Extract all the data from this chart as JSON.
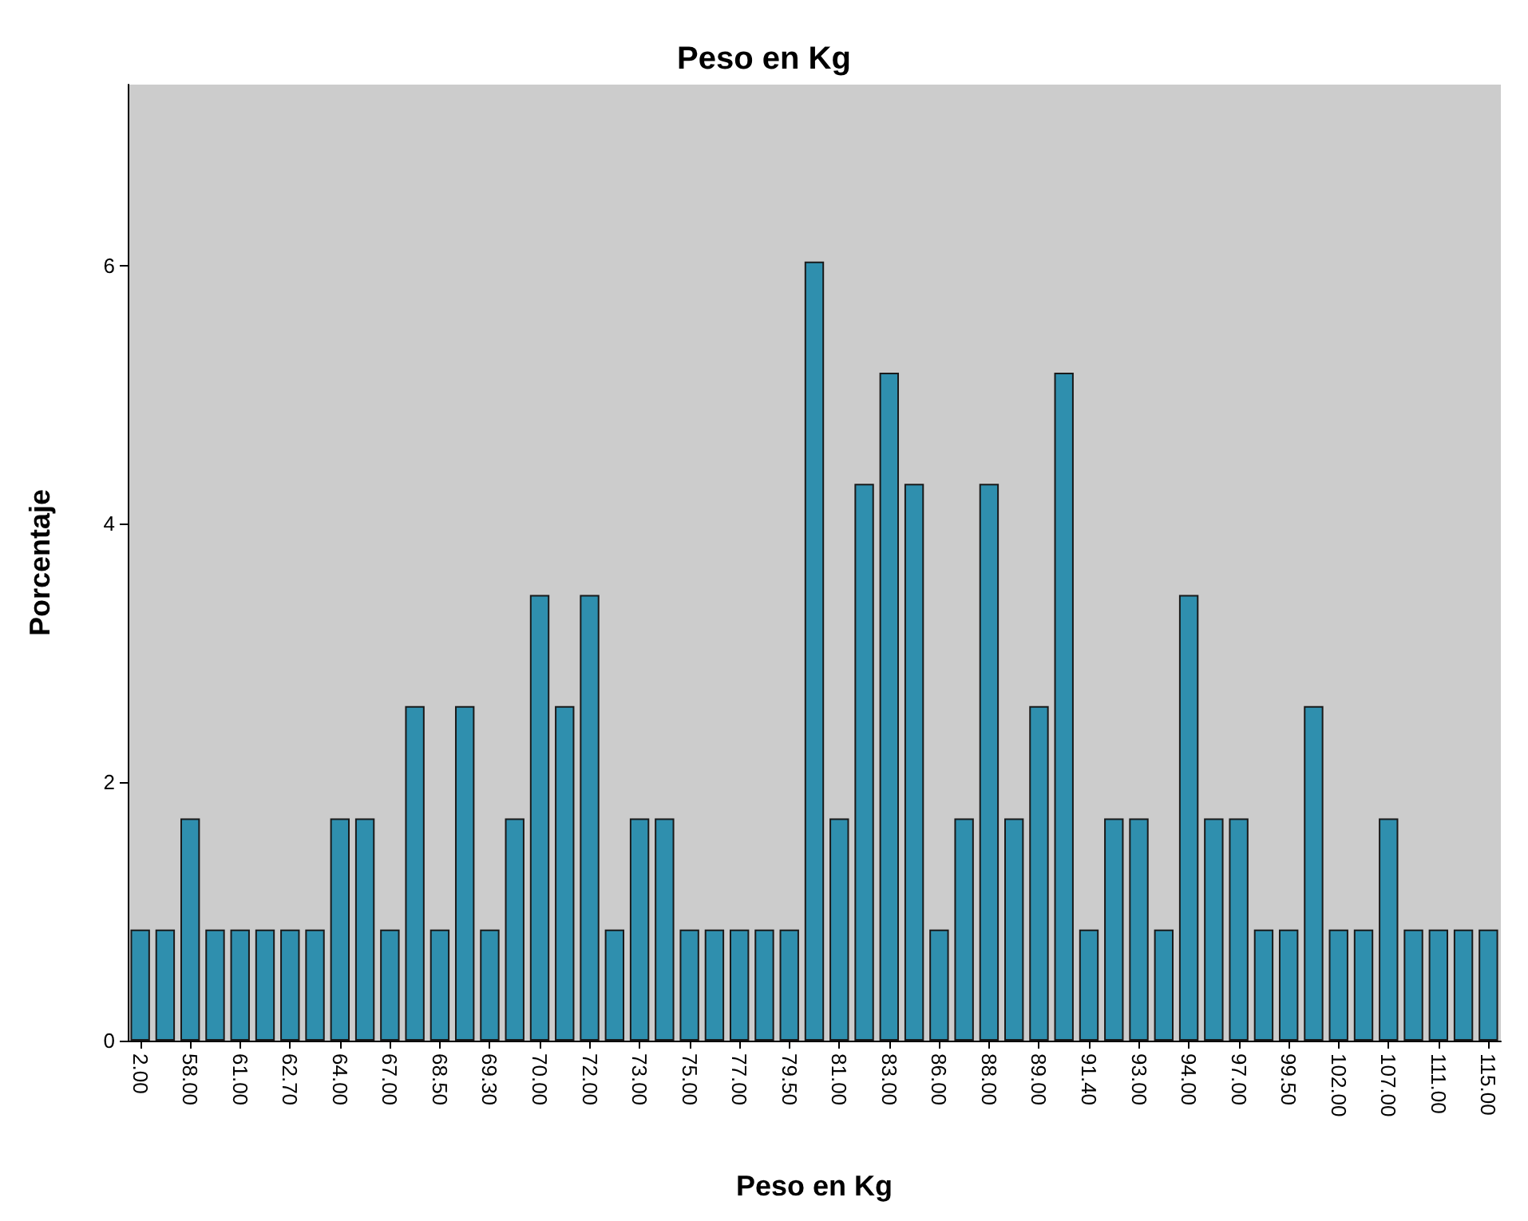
{
  "chart_data": {
    "type": "bar",
    "title": "Peso en Kg",
    "xlabel": "Peso en Kg",
    "ylabel": "Porcentaje",
    "categories": [
      "2.00",
      null,
      "58.00",
      null,
      "61.00",
      null,
      "62.70",
      null,
      "64.00",
      null,
      "67.00",
      null,
      "68.50",
      null,
      "69.30",
      null,
      "70.00",
      null,
      "72.00",
      null,
      "73.00",
      null,
      "75.00",
      null,
      "77.00",
      null,
      "79.50",
      null,
      "81.00",
      null,
      "83.00",
      null,
      "86.00",
      null,
      "88.00",
      null,
      "89.00",
      null,
      "91.40",
      null,
      "93.00",
      null,
      "94.00",
      null,
      "97.00",
      null,
      "99.50",
      null,
      "102.00",
      null,
      "107.00",
      null,
      "111.00",
      null,
      "115.00"
    ],
    "values": [
      0.86,
      0.86,
      1.72,
      0.86,
      0.86,
      0.86,
      0.86,
      0.86,
      1.72,
      1.72,
      0.86,
      2.59,
      0.86,
      2.59,
      0.86,
      1.72,
      3.45,
      2.59,
      3.45,
      0.86,
      1.72,
      1.72,
      0.86,
      0.86,
      0.86,
      0.86,
      0.86,
      6.03,
      1.72,
      4.31,
      5.17,
      4.31,
      0.86,
      1.72,
      4.31,
      1.72,
      2.59,
      5.17,
      0.86,
      1.72,
      1.72,
      0.86,
      3.45,
      1.72,
      1.72,
      0.86,
      0.86,
      2.59,
      0.86,
      0.86,
      1.72,
      0.86,
      0.86,
      0.86,
      0.86
    ],
    "color": "#2f8fae",
    "ylim": [
      0,
      7.4
    ],
    "yticks": [
      0,
      2,
      4,
      6
    ],
    "grid": false
  }
}
